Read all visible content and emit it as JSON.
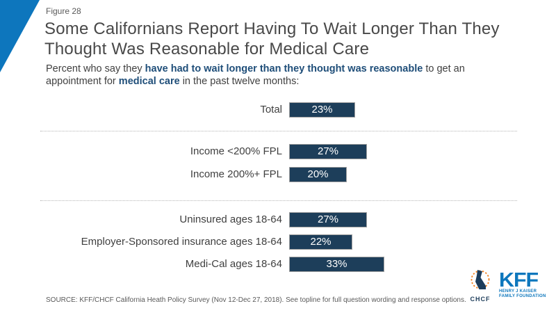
{
  "figure_label": "Figure 28",
  "title": "Some Californians Report Having To Wait Longer Than They Thought Was Reasonable for Medical Care",
  "subtitle": {
    "lines": [
      {
        "segments": [
          {
            "text": "Percent who say they ",
            "bold": false
          },
          {
            "text": "have had to wait longer than they thought was reasonable",
            "bold": true
          },
          {
            "text": " to get an",
            "bold": false
          }
        ]
      },
      {
        "segments": [
          {
            "text": "appointment for ",
            "bold": false
          },
          {
            "text": "medical care",
            "bold": true
          },
          {
            "text": " in the past twelve months:",
            "bold": false
          }
        ]
      }
    ]
  },
  "chart_data": {
    "type": "bar",
    "orientation": "horizontal",
    "value_unit": "%",
    "title": "Percent who have had to wait longer than they thought was reasonable for a medical care appointment",
    "xlim": [
      0,
      100
    ],
    "grid": false,
    "value_labels": "inside-bar",
    "bar_color": "#1d3e5a",
    "categories": [
      "Total",
      "Income <200% FPL",
      "Income 200%+ FPL",
      "Uninsured ages 18-64",
      "Employer-Sponsored insurance ages 18-64",
      "Medi-Cal ages 18-64"
    ],
    "values": [
      23,
      27,
      20,
      27,
      22,
      33
    ],
    "groups": [
      {
        "rows": [
          {
            "label": "Total",
            "value": 23
          }
        ]
      },
      {
        "rows": [
          {
            "label": "Income <200% FPL",
            "value": 27
          },
          {
            "label": "Income 200%+ FPL",
            "value": 20
          }
        ]
      },
      {
        "rows": [
          {
            "label": "Uninsured ages 18-64",
            "value": 27
          },
          {
            "label": "Employer-Sponsored insurance ages 18-64",
            "value": 22
          },
          {
            "label": "Medi-Cal ages 18-64",
            "value": 33
          }
        ]
      }
    ]
  },
  "footer": {
    "source": "SOURCE: KFF/CHCF California Heath Policy Survey (Nov 12-Dec 27, 2018). See topline for full question wording and response options.",
    "chcf_label": "CHCF",
    "kff_label": "KFF",
    "kff_sub1": "HENRY J KAISER",
    "kff_sub2": "FAMILY FOUNDATION"
  },
  "colors": {
    "accent_blue": "#0d76bd",
    "bar_navy": "#1d3e5a",
    "bold_text_navy": "#1f4e79",
    "title_gray": "#484848",
    "source_gray": "#595959",
    "kff_blue": "#0d77bd",
    "chcf_orange": "#f58220"
  }
}
